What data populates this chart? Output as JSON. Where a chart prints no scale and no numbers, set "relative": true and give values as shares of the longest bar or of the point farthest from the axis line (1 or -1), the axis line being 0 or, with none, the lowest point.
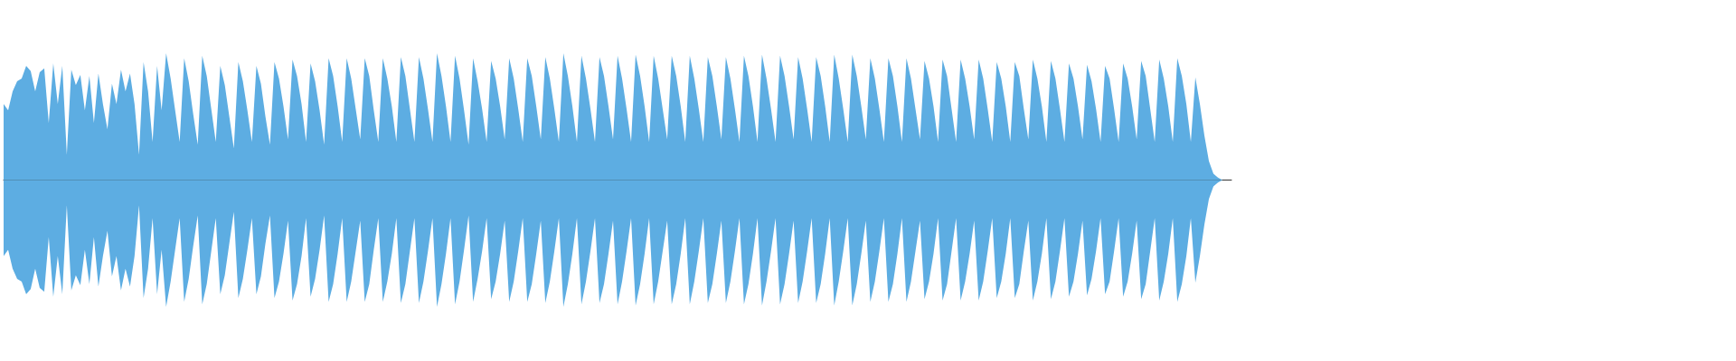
{
  "chart_data": {
    "type": "area",
    "relative": true,
    "categories": [
      null,
      null,
      null,
      null,
      null,
      null,
      null,
      null,
      null,
      null,
      null,
      null,
      null,
      null,
      null,
      null,
      null,
      null,
      null,
      null,
      null,
      null,
      null,
      null,
      null,
      null,
      null,
      null,
      null,
      null,
      null,
      null,
      null,
      null,
      null,
      null,
      null,
      null,
      null,
      null,
      null,
      null,
      null,
      null,
      null,
      null,
      null,
      null,
      null,
      null,
      null,
      null,
      null,
      null,
      null,
      null,
      null,
      null,
      null,
      null,
      null,
      null,
      null,
      null,
      null,
      null,
      null,
      null,
      null,
      null,
      null,
      null,
      null,
      null,
      null,
      null,
      null,
      null,
      null,
      null,
      null,
      null,
      null,
      null,
      null,
      null,
      null,
      null,
      null,
      null,
      null,
      null,
      null,
      null,
      null,
      null,
      null,
      null,
      null,
      null,
      null,
      null,
      null,
      null,
      null,
      null,
      null,
      null,
      null,
      null,
      null,
      null,
      null,
      null,
      null,
      null,
      null,
      null,
      null,
      null,
      null,
      null,
      null,
      null,
      null,
      null,
      null,
      null,
      null,
      null,
      null,
      null,
      null,
      null,
      null,
      null,
      null,
      null,
      null,
      null,
      null,
      null,
      null,
      null,
      null,
      null,
      null,
      null,
      null,
      null,
      null,
      null,
      null,
      null,
      null,
      null,
      null,
      null,
      null,
      null,
      null,
      null,
      null,
      null,
      null,
      null,
      null,
      null,
      null,
      null,
      null,
      null,
      null,
      null,
      null,
      null,
      null,
      null,
      null,
      null,
      null,
      null,
      null,
      null,
      null,
      null,
      null,
      null,
      null,
      null,
      null,
      null,
      null,
      null,
      null,
      null,
      null,
      null,
      null,
      null,
      null,
      null,
      null,
      null,
      null,
      null,
      null,
      null,
      null,
      null,
      null,
      null,
      null,
      null,
      null,
      null,
      null,
      null,
      null,
      null,
      null,
      null,
      null,
      null,
      null,
      null,
      null,
      null,
      null,
      null,
      null,
      null,
      null,
      null,
      null,
      null,
      null,
      null,
      null,
      null,
      null,
      null,
      null,
      null,
      null,
      null,
      null,
      null,
      null,
      null,
      null,
      null,
      null,
      null,
      null,
      null,
      null,
      null,
      null,
      null,
      null,
      null,
      null,
      null,
      null,
      null,
      null,
      null,
      null,
      null,
      null,
      null,
      null
    ],
    "series": [
      {
        "color": "#5dade2",
        "values": [
          0.6,
          0.55,
          0.7,
          0.78,
          0.8,
          0.9,
          0.86,
          0.7,
          0.85,
          0.88,
          0.45,
          0.92,
          0.6,
          0.9,
          0.2,
          0.87,
          0.75,
          0.83,
          0.55,
          0.82,
          0.45,
          0.84,
          0.6,
          0.4,
          0.76,
          0.6,
          0.87,
          0.7,
          0.84,
          0.6,
          0.2,
          0.93,
          0.7,
          0.3,
          0.9,
          0.55,
          1.0,
          0.8,
          0.55,
          0.3,
          0.96,
          0.78,
          0.52,
          0.28,
          0.98,
          0.82,
          0.56,
          0.3,
          0.9,
          0.75,
          0.5,
          0.25,
          0.93,
          0.78,
          0.55,
          0.3,
          0.9,
          0.76,
          0.5,
          0.28,
          0.93,
          0.8,
          0.58,
          0.32,
          0.95,
          0.82,
          0.6,
          0.3,
          0.92,
          0.78,
          0.55,
          0.28,
          0.96,
          0.82,
          0.58,
          0.3,
          0.96,
          0.8,
          0.56,
          0.32,
          0.96,
          0.82,
          0.55,
          0.3,
          0.96,
          0.8,
          0.58,
          0.3,
          0.97,
          0.82,
          0.56,
          0.3,
          0.97,
          0.8,
          0.56,
          0.3,
          1.0,
          0.82,
          0.58,
          0.3,
          0.98,
          0.8,
          0.55,
          0.28,
          0.96,
          0.78,
          0.56,
          0.3,
          0.94,
          0.8,
          0.58,
          0.32,
          0.96,
          0.8,
          0.56,
          0.3,
          0.96,
          0.82,
          0.58,
          0.32,
          0.97,
          0.8,
          0.56,
          0.3,
          1.0,
          0.82,
          0.58,
          0.3,
          0.98,
          0.8,
          0.56,
          0.3,
          0.97,
          0.82,
          0.58,
          0.32,
          0.98,
          0.8,
          0.56,
          0.3,
          0.99,
          0.82,
          0.58,
          0.3,
          0.98,
          0.8,
          0.56,
          0.32,
          0.98,
          0.82,
          0.58,
          0.3,
          0.98,
          0.8,
          0.56,
          0.3,
          0.97,
          0.82,
          0.58,
          0.32,
          0.97,
          0.8,
          0.56,
          0.3,
          0.98,
          0.82,
          0.58,
          0.3,
          0.99,
          0.8,
          0.56,
          0.3,
          0.98,
          0.82,
          0.58,
          0.32,
          0.97,
          0.8,
          0.56,
          0.3,
          0.97,
          0.82,
          0.58,
          0.3,
          0.99,
          0.8,
          0.56,
          0.3,
          0.99,
          0.82,
          0.58,
          0.32,
          0.96,
          0.8,
          0.56,
          0.3,
          0.96,
          0.82,
          0.58,
          0.3,
          0.96,
          0.8,
          0.56,
          0.32,
          0.94,
          0.8,
          0.58,
          0.3,
          0.95,
          0.82,
          0.56,
          0.3,
          0.95,
          0.8,
          0.58,
          0.32,
          0.95,
          0.8,
          0.56,
          0.3,
          0.93,
          0.8,
          0.58,
          0.3,
          0.93,
          0.82,
          0.56,
          0.32,
          0.95,
          0.8,
          0.58,
          0.3,
          0.94,
          0.8,
          0.56,
          0.3,
          0.92,
          0.8,
          0.58,
          0.32,
          0.91,
          0.78,
          0.56,
          0.3,
          0.9,
          0.8,
          0.56,
          0.3,
          0.92,
          0.8,
          0.58,
          0.32,
          0.94,
          0.82,
          0.56,
          0.3,
          0.95,
          0.8,
          0.58,
          0.3,
          0.96,
          0.82,
          0.6,
          0.3,
          0.81,
          0.6,
          0.35,
          0.15,
          0.05,
          0.02,
          0,
          0,
          0
        ]
      },
      {
        "color": "#5dade2",
        "values": [
          -0.6,
          -0.55,
          -0.7,
          -0.78,
          -0.8,
          -0.9,
          -0.86,
          -0.7,
          -0.85,
          -0.88,
          -0.45,
          -0.92,
          -0.6,
          -0.9,
          -0.2,
          -0.87,
          -0.75,
          -0.83,
          -0.55,
          -0.82,
          -0.45,
          -0.84,
          -0.6,
          -0.4,
          -0.76,
          -0.6,
          -0.87,
          -0.7,
          -0.84,
          -0.6,
          -0.2,
          -0.93,
          -0.7,
          -0.3,
          -0.9,
          -0.55,
          -1.0,
          -0.8,
          -0.55,
          -0.3,
          -0.96,
          -0.78,
          -0.52,
          -0.28,
          -0.98,
          -0.82,
          -0.56,
          -0.3,
          -0.9,
          -0.75,
          -0.5,
          -0.25,
          -0.93,
          -0.78,
          -0.55,
          -0.3,
          -0.9,
          -0.76,
          -0.5,
          -0.28,
          -0.93,
          -0.8,
          -0.58,
          -0.32,
          -0.95,
          -0.82,
          -0.6,
          -0.3,
          -0.92,
          -0.78,
          -0.55,
          -0.28,
          -0.96,
          -0.82,
          -0.58,
          -0.3,
          -0.96,
          -0.8,
          -0.56,
          -0.32,
          -0.96,
          -0.82,
          -0.55,
          -0.3,
          -0.96,
          -0.8,
          -0.58,
          -0.3,
          -0.97,
          -0.82,
          -0.56,
          -0.3,
          -0.97,
          -0.8,
          -0.56,
          -0.3,
          -1.0,
          -0.82,
          -0.58,
          -0.3,
          -0.98,
          -0.8,
          -0.55,
          -0.28,
          -0.96,
          -0.78,
          -0.56,
          -0.3,
          -0.94,
          -0.8,
          -0.58,
          -0.32,
          -0.96,
          -0.8,
          -0.56,
          -0.3,
          -0.96,
          -0.82,
          -0.58,
          -0.32,
          -0.97,
          -0.8,
          -0.56,
          -0.3,
          -1.0,
          -0.82,
          -0.58,
          -0.3,
          -0.98,
          -0.8,
          -0.56,
          -0.3,
          -0.97,
          -0.82,
          -0.58,
          -0.32,
          -0.98,
          -0.8,
          -0.56,
          -0.3,
          -0.99,
          -0.82,
          -0.58,
          -0.3,
          -0.98,
          -0.8,
          -0.56,
          -0.32,
          -0.98,
          -0.82,
          -0.58,
          -0.3,
          -0.98,
          -0.8,
          -0.56,
          -0.3,
          -0.97,
          -0.82,
          -0.58,
          -0.32,
          -0.97,
          -0.8,
          -0.56,
          -0.3,
          -0.98,
          -0.82,
          -0.58,
          -0.3,
          -0.99,
          -0.8,
          -0.56,
          -0.3,
          -0.98,
          -0.82,
          -0.58,
          -0.32,
          -0.97,
          -0.8,
          -0.56,
          -0.3,
          -0.97,
          -0.82,
          -0.58,
          -0.3,
          -0.99,
          -0.8,
          -0.56,
          -0.3,
          -0.99,
          -0.82,
          -0.58,
          -0.32,
          -0.96,
          -0.8,
          -0.56,
          -0.3,
          -0.96,
          -0.82,
          -0.58,
          -0.3,
          -0.96,
          -0.8,
          -0.56,
          -0.32,
          -0.94,
          -0.8,
          -0.58,
          -0.3,
          -0.95,
          -0.82,
          -0.56,
          -0.3,
          -0.95,
          -0.8,
          -0.58,
          -0.32,
          -0.95,
          -0.8,
          -0.56,
          -0.3,
          -0.93,
          -0.8,
          -0.58,
          -0.3,
          -0.93,
          -0.82,
          -0.56,
          -0.32,
          -0.95,
          -0.8,
          -0.58,
          -0.3,
          -0.94,
          -0.8,
          -0.56,
          -0.3,
          -0.92,
          -0.8,
          -0.58,
          -0.32,
          -0.91,
          -0.78,
          -0.56,
          -0.3,
          -0.9,
          -0.8,
          -0.56,
          -0.3,
          -0.92,
          -0.8,
          -0.58,
          -0.32,
          -0.94,
          -0.82,
          -0.56,
          -0.3,
          -0.95,
          -0.8,
          -0.58,
          -0.3,
          -0.96,
          -0.82,
          -0.6,
          -0.3,
          -0.81,
          -0.6,
          -0.35,
          -0.15,
          -0.05,
          -0.02,
          0,
          0,
          0
        ]
      }
    ]
  }
}
